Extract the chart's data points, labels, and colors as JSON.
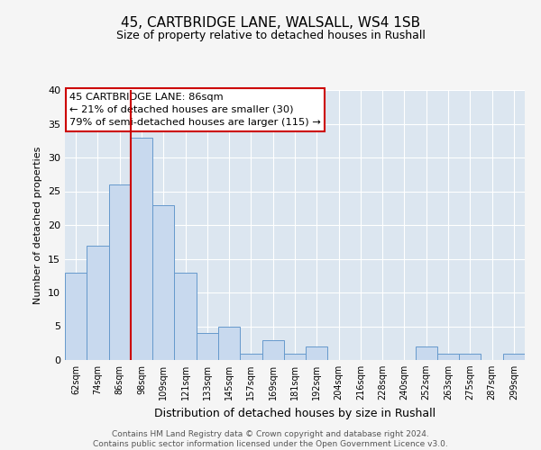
{
  "title": "45, CARTBRIDGE LANE, WALSALL, WS4 1SB",
  "subtitle": "Size of property relative to detached houses in Rushall",
  "xlabel": "Distribution of detached houses by size in Rushall",
  "ylabel": "Number of detached properties",
  "bar_labels": [
    "62sqm",
    "74sqm",
    "86sqm",
    "98sqm",
    "109sqm",
    "121sqm",
    "133sqm",
    "145sqm",
    "157sqm",
    "169sqm",
    "181sqm",
    "192sqm",
    "204sqm",
    "216sqm",
    "228sqm",
    "240sqm",
    "252sqm",
    "263sqm",
    "275sqm",
    "287sqm",
    "299sqm"
  ],
  "bar_values": [
    13,
    17,
    26,
    33,
    23,
    13,
    4,
    5,
    1,
    3,
    1,
    2,
    0,
    0,
    0,
    0,
    2,
    1,
    1,
    0,
    1
  ],
  "bar_color": "#c8d9ee",
  "bar_edge_color": "#6699cc",
  "vline_color": "#cc0000",
  "vline_index": 2.5,
  "annotation_lines": [
    "45 CARTBRIDGE LANE: 86sqm",
    "← 21% of detached houses are smaller (30)",
    "79% of semi-detached houses are larger (115) →"
  ],
  "annotation_box_facecolor": "#ffffff",
  "annotation_box_edgecolor": "#cc0000",
  "ylim": [
    0,
    40
  ],
  "yticks": [
    0,
    5,
    10,
    15,
    20,
    25,
    30,
    35,
    40
  ],
  "bg_color": "#dce6f0",
  "fig_facecolor": "#f5f5f5",
  "footer_line1": "Contains HM Land Registry data © Crown copyright and database right 2024.",
  "footer_line2": "Contains public sector information licensed under the Open Government Licence v3.0."
}
